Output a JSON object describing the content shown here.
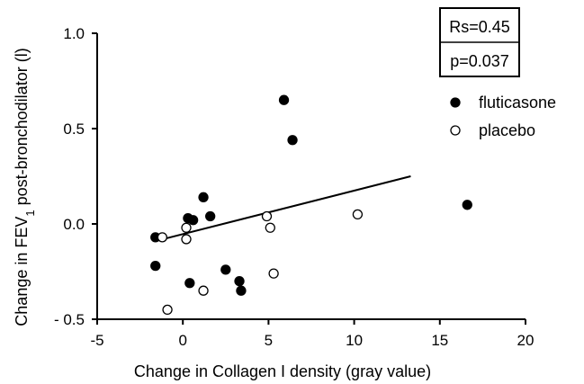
{
  "chart_data": {
    "type": "scatter",
    "xlabel": "Change in Collagen I density (gray value)",
    "ylabel_main": "Change in FEV",
    "ylabel_sub": "1",
    "ylabel_rest": " post-bronchodilator (l)",
    "xlim": [
      -5,
      20
    ],
    "ylim": [
      -0.5,
      1.0
    ],
    "x_ticks": [
      -5,
      0,
      5,
      10,
      15,
      20
    ],
    "x_tick_labels": [
      "-5",
      "0",
      "5",
      "10",
      "15",
      "20"
    ],
    "y_ticks": [
      -0.5,
      0.0,
      0.5,
      1.0
    ],
    "y_tick_labels": [
      "- 0.5",
      "0.0",
      "0.5",
      "1.0"
    ],
    "grid": false,
    "legend_position": "right",
    "stats": {
      "rs": "Rs=0.45",
      "p": "p=0.037"
    },
    "series": [
      {
        "name": "fluticasone",
        "marker": "filled-circle",
        "points": [
          {
            "x": -1.6,
            "y": -0.07
          },
          {
            "x": -1.6,
            "y": -0.22
          },
          {
            "x": 0.3,
            "y": 0.03
          },
          {
            "x": 0.6,
            "y": 0.02
          },
          {
            "x": 1.2,
            "y": 0.14
          },
          {
            "x": 1.6,
            "y": 0.04
          },
          {
            "x": 0.4,
            "y": -0.31
          },
          {
            "x": 2.5,
            "y": -0.24
          },
          {
            "x": 3.3,
            "y": -0.3
          },
          {
            "x": 3.4,
            "y": -0.35
          },
          {
            "x": 5.9,
            "y": 0.65
          },
          {
            "x": 6.4,
            "y": 0.44
          },
          {
            "x": 16.6,
            "y": 0.1
          }
        ]
      },
      {
        "name": "placebo",
        "marker": "open-circle",
        "points": [
          {
            "x": -1.2,
            "y": -0.07
          },
          {
            "x": 0.2,
            "y": -0.02
          },
          {
            "x": 0.2,
            "y": -0.08
          },
          {
            "x": 1.2,
            "y": -0.35
          },
          {
            "x": -0.9,
            "y": -0.45
          },
          {
            "x": 4.9,
            "y": 0.04
          },
          {
            "x": 5.1,
            "y": -0.02
          },
          {
            "x": 5.3,
            "y": -0.26
          },
          {
            "x": 10.2,
            "y": 0.05
          }
        ]
      }
    ],
    "regression_line": {
      "x1": -1.6,
      "y1": -0.09,
      "x2": 13.3,
      "y2": 0.25
    }
  }
}
